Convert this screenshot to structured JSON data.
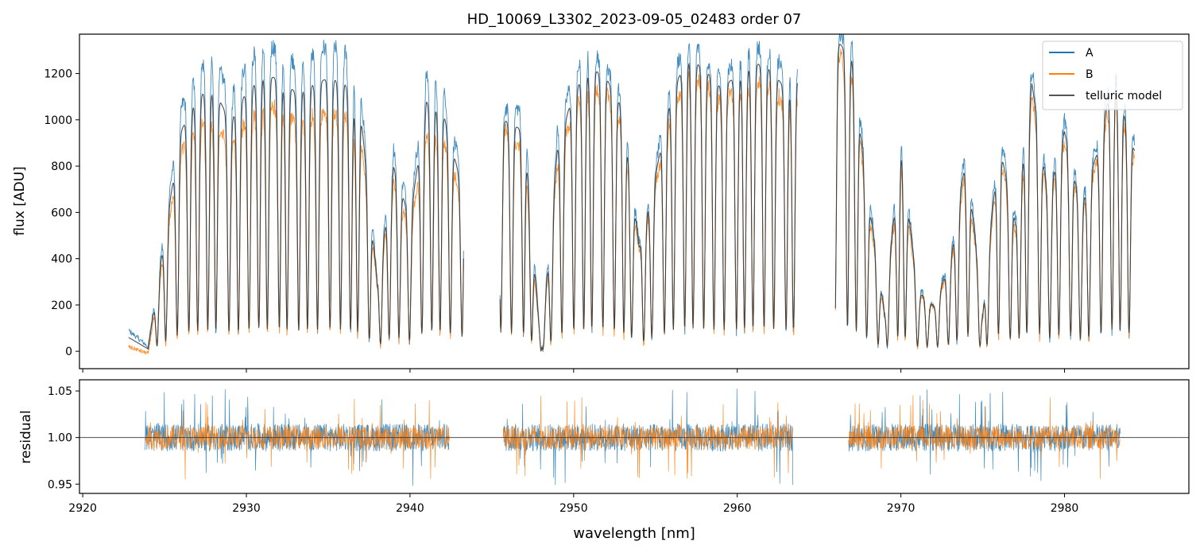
{
  "chart_data": [
    {
      "type": "line",
      "title": "HD_10069_L3302_2023-09-05_02483  order 07",
      "xlabel": "",
      "ylabel": "flux [ADU]",
      "xlim": [
        2919.8,
        2987.6
      ],
      "ylim": [
        -75,
        1370
      ],
      "yticks": [
        0,
        200,
        400,
        600,
        800,
        1000,
        1200
      ],
      "legend": {
        "placement": "top-right",
        "entries": [
          "A",
          "B",
          "telluric model"
        ]
      },
      "segments": [
        [
          2922.8,
          2943.3
        ],
        [
          2945.5,
          2963.7
        ],
        [
          2966.0,
          2984.3
        ]
      ],
      "series": [
        {
          "name": "A",
          "color": "#1f77b4",
          "x": [
            2922.8,
            2924.0,
            2925.0,
            2926.0,
            2927.0,
            2928.0,
            2929.0,
            2930.0,
            2931.0,
            2932.0,
            2933.0,
            2934.0,
            2935.0,
            2936.0,
            2937.0,
            2938.0,
            2939.0,
            2940.0,
            2941.0,
            2942.0,
            2943.0,
            2945.5,
            2947.0,
            2948.0,
            2949.0,
            2950.0,
            2951.0,
            2952.0,
            2953.0,
            2954.0,
            2955.0,
            2956.0,
            2957.0,
            2958.0,
            2959.0,
            2960.0,
            2961.0,
            2962.0,
            2963.0,
            2966.0,
            2967.0,
            2968.0,
            2969.0,
            2970.0,
            2971.0,
            2972.0,
            2973.0,
            2974.0,
            2975.0,
            2976.0,
            2977.0,
            2978.0,
            2979.0,
            2980.0,
            2981.0,
            2982.0,
            2983.0,
            2984.3
          ],
          "values": [
            90,
            20,
            540,
            1050,
            1220,
            1280,
            1100,
            1250,
            1330,
            1310,
            1250,
            1280,
            1320,
            1300,
            1120,
            320,
            880,
            620,
            1200,
            1150,
            820,
            1050,
            1050,
            0,
            950,
            1200,
            1310,
            1240,
            1100,
            480,
            800,
            1200,
            1350,
            1280,
            1200,
            1250,
            1320,
            1300,
            1200,
            1400,
            1340,
            700,
            180,
            950,
            280,
            200,
            400,
            900,
            180,
            950,
            600,
            1220,
            700,
            1000,
            650,
            900,
            1250,
            900
          ]
        },
        {
          "name": "B",
          "color": "#ff7f0e",
          "x": [
            2922.8,
            2924.0,
            2925.0,
            2926.0,
            2927.0,
            2928.0,
            2929.0,
            2930.0,
            2931.0,
            2932.0,
            2933.0,
            2934.0,
            2935.0,
            2936.0,
            2937.0,
            2938.0,
            2939.0,
            2940.0,
            2941.0,
            2942.0,
            2943.0,
            2945.5,
            2947.0,
            2948.0,
            2949.0,
            2950.0,
            2951.0,
            2952.0,
            2953.0,
            2954.0,
            2955.0,
            2956.0,
            2957.0,
            2958.0,
            2959.0,
            2960.0,
            2961.0,
            2962.0,
            2963.0,
            2966.0,
            2967.0,
            2968.0,
            2969.0,
            2970.0,
            2971.0,
            2972.0,
            2973.0,
            2974.0,
            2975.0,
            2976.0,
            2977.0,
            2978.0,
            2979.0,
            2980.0,
            2981.0,
            2982.0,
            2983.0,
            2984.3
          ],
          "values": [
            20,
            -10,
            450,
            860,
            980,
            1000,
            880,
            1000,
            1050,
            1060,
            990,
            1020,
            1040,
            1020,
            920,
            280,
            730,
            520,
            950,
            930,
            700,
            980,
            860,
            0,
            800,
            1050,
            1150,
            1120,
            990,
            430,
            720,
            1040,
            1200,
            1160,
            1080,
            1130,
            1180,
            1150,
            1060,
            1300,
            1200,
            620,
            160,
            830,
            250,
            190,
            360,
            800,
            160,
            860,
            520,
            1100,
            640,
            900,
            590,
            820,
            1150,
            820
          ]
        },
        {
          "name": "telluric model",
          "color": "#333333",
          "x": [
            2922.8,
            2924.0,
            2925.0,
            2926.0,
            2927.0,
            2928.0,
            2929.0,
            2930.0,
            2931.0,
            2932.0,
            2933.0,
            2934.0,
            2935.0,
            2936.0,
            2937.0,
            2938.0,
            2939.0,
            2940.0,
            2941.0,
            2942.0,
            2943.0,
            2945.5,
            2947.0,
            2948.0,
            2949.0,
            2950.0,
            2951.0,
            2952.0,
            2953.0,
            2954.0,
            2955.0,
            2956.0,
            2957.0,
            2958.0,
            2959.0,
            2960.0,
            2961.0,
            2962.0,
            2963.0,
            2966.0,
            2967.0,
            2968.0,
            2969.0,
            2970.0,
            2971.0,
            2972.0,
            2973.0,
            2974.0,
            2975.0,
            2976.0,
            2977.0,
            2978.0,
            2979.0,
            2980.0,
            2981.0,
            2982.0,
            2983.0,
            2984.3
          ],
          "values": [
            60,
            10,
            500,
            950,
            1100,
            1140,
            990,
            1120,
            1190,
            1180,
            1120,
            1150,
            1180,
            1160,
            1020,
            300,
            800,
            570,
            1080,
            1040,
            760,
            1010,
            950,
            0,
            870,
            1120,
            1230,
            1180,
            1050,
            450,
            760,
            1120,
            1270,
            1220,
            1140,
            1190,
            1250,
            1220,
            1130,
            1350,
            1270,
            660,
            170,
            890,
            265,
            195,
            380,
            850,
            170,
            900,
            560,
            1160,
            670,
            950,
            620,
            860,
            1200,
            860
          ]
        }
      ]
    },
    {
      "type": "line",
      "title": "",
      "xlabel": "wavelength [nm]",
      "ylabel": "residual",
      "xlim": [
        2919.8,
        2987.6
      ],
      "ylim": [
        0.94,
        1.062
      ],
      "yticks": [
        0.95,
        1.0,
        1.05
      ],
      "xticks": [
        2920,
        2930,
        2940,
        2950,
        2960,
        2970,
        2980
      ],
      "reference_line": 1.0,
      "segments": [
        [
          2923.8,
          2942.4
        ],
        [
          2945.7,
          2963.4
        ],
        [
          2966.8,
          2983.4
        ]
      ],
      "series": [
        {
          "name": "A",
          "color": "#1f77b4",
          "center": 1.0,
          "spread": 0.015
        },
        {
          "name": "B",
          "color": "#ff7f0e",
          "center": 1.0,
          "spread": 0.013
        }
      ]
    }
  ]
}
